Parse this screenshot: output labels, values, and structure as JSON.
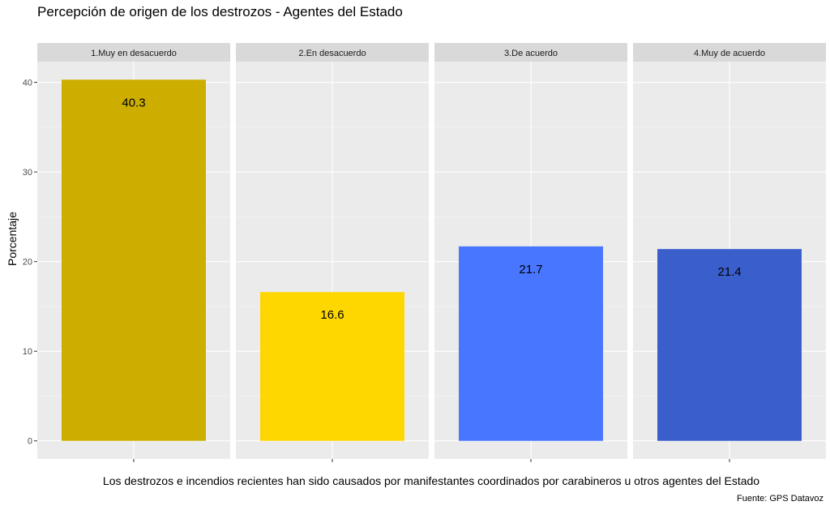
{
  "chart_data": {
    "type": "bar",
    "title": "Percepción de origen de los destrozos - Agentes del Estado",
    "xlabel": "Los destrozos e incendios recientes han sido causados por manifestantes coordinados por carabineros u otros agentes del Estado",
    "ylabel": "Porcentaje",
    "caption": "Fuente: GPS Datavoz",
    "facets": [
      "1.Muy en desacuerdo",
      "2.En desacuerdo",
      "3.De acuerdo",
      "4.Muy de acuerdo"
    ],
    "values": [
      40.3,
      16.6,
      21.7,
      21.4
    ],
    "value_labels": [
      "40.3",
      "16.6",
      "21.7",
      "21.4"
    ],
    "colors": [
      "#CDAD00",
      "#FFD700",
      "#4876FF",
      "#3A5FCD"
    ],
    "yticks": [
      0,
      10,
      20,
      30,
      40
    ],
    "ytick_labels": [
      "0",
      "10",
      "20",
      "30",
      "40"
    ],
    "ylim": [
      -2.015,
      42.315
    ],
    "grid": true,
    "legend": "none"
  }
}
